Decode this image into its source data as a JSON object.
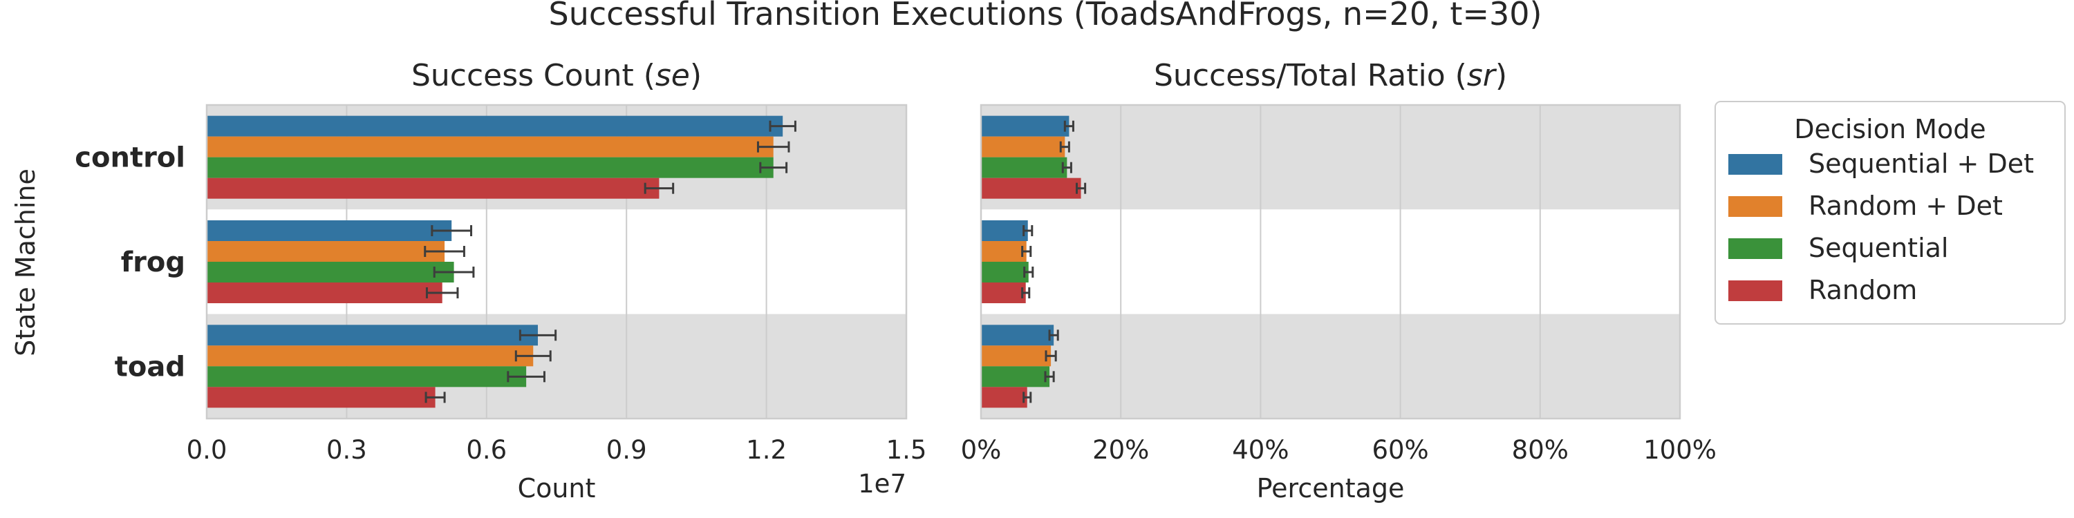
{
  "title": "Successful Transition Executions (ToadsAndFrogs, n=20, t=30)",
  "y_axis_label": "State Machine",
  "categories": [
    "control",
    "frog",
    "toad"
  ],
  "legend": {
    "title": "Decision Mode",
    "entries": [
      {
        "name": "Sequential + Det",
        "color": "#3274a1"
      },
      {
        "name": "Random + Det",
        "color": "#e1812c"
      },
      {
        "name": "Sequential",
        "color": "#3a923a"
      },
      {
        "name": "Random",
        "color": "#c03d3e"
      }
    ]
  },
  "chart_data": [
    {
      "type": "bar",
      "orientation": "horizontal",
      "title": "Success Count (se)",
      "title_main": "Success Count (",
      "title_italic": "se",
      "title_end": ")",
      "xlabel": "Count",
      "ylabel": "State Machine",
      "offset_label": "1e7",
      "xlim": [
        0,
        15000000
      ],
      "xticks": [
        0,
        3000000,
        6000000,
        9000000,
        12000000,
        15000000
      ],
      "xtick_labels": [
        "0.0",
        "0.3",
        "0.6",
        "0.9",
        "1.2",
        "1.5"
      ],
      "categories": [
        "control",
        "frog",
        "toad"
      ],
      "series": [
        {
          "name": "Sequential + Det",
          "values": [
            12350000,
            5250000,
            7100000
          ],
          "errors": [
            270000,
            420000,
            380000
          ]
        },
        {
          "name": "Random + Det",
          "values": [
            12150000,
            5100000,
            7000000
          ],
          "errors": [
            330000,
            420000,
            370000
          ]
        },
        {
          "name": "Sequential",
          "values": [
            12150000,
            5300000,
            6850000
          ],
          "errors": [
            280000,
            420000,
            390000
          ]
        },
        {
          "name": "Random",
          "values": [
            9700000,
            5050000,
            4900000
          ],
          "errors": [
            300000,
            330000,
            200000
          ]
        }
      ],
      "grid": true
    },
    {
      "type": "bar",
      "orientation": "horizontal",
      "title": "Success/Total Ratio (sr)",
      "title_main": "Success/Total Ratio (",
      "title_italic": "sr",
      "title_end": ")",
      "xlabel": "Percentage",
      "xlim": [
        0,
        100
      ],
      "xticks": [
        0,
        20,
        40,
        60,
        80,
        100
      ],
      "xtick_labels": [
        "0%",
        "20%",
        "40%",
        "60%",
        "80%",
        "100%"
      ],
      "categories": [
        "control",
        "frog",
        "toad"
      ],
      "series": [
        {
          "name": "Sequential + Det",
          "values": [
            12.6,
            6.7,
            10.4
          ],
          "errors": [
            0.6,
            0.6,
            0.6
          ]
        },
        {
          "name": "Random + Det",
          "values": [
            12.0,
            6.5,
            10.0
          ],
          "errors": [
            0.6,
            0.6,
            0.7
          ]
        },
        {
          "name": "Sequential",
          "values": [
            12.3,
            6.8,
            9.8
          ],
          "errors": [
            0.6,
            0.6,
            0.6
          ]
        },
        {
          "name": "Random",
          "values": [
            14.3,
            6.4,
            6.6
          ],
          "errors": [
            0.6,
            0.5,
            0.5
          ]
        }
      ],
      "grid": true
    }
  ]
}
